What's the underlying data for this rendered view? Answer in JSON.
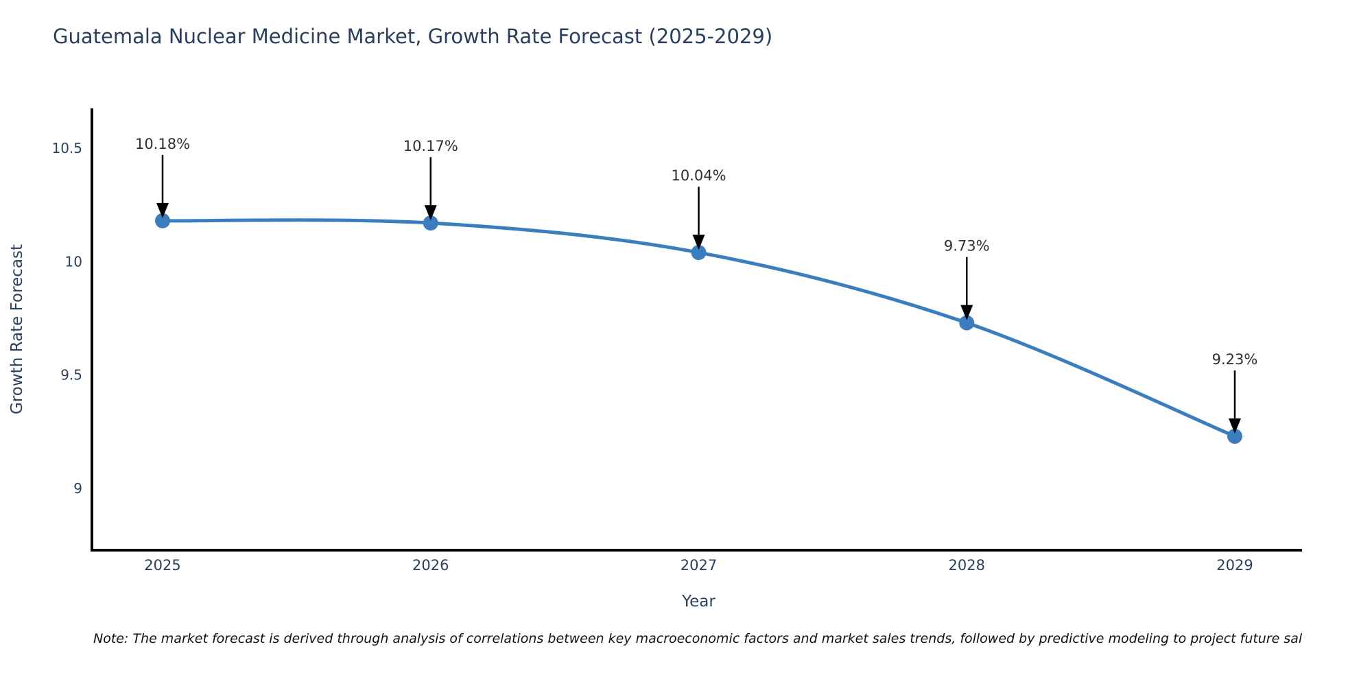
{
  "chart_data": {
    "type": "line",
    "title": "Guatemala Nuclear Medicine Market, Growth Rate Forecast (2025-2029)",
    "xlabel": "Year",
    "ylabel": "Growth Rate Forecast",
    "line_shape": "spline",
    "grid": false,
    "legend": "none",
    "categories": [
      "2025",
      "2026",
      "2027",
      "2028",
      "2029"
    ],
    "values": [
      10.18,
      10.17,
      10.04,
      9.73,
      9.23
    ],
    "point_labels": [
      "10.18%",
      "10.17%",
      "10.04%",
      "9.73%",
      "9.23%"
    ],
    "y_ticks": [
      10.5,
      10,
      9.5,
      9
    ],
    "y_tick_labels": [
      "10.5",
      "10",
      "9.5",
      "9"
    ],
    "ylim": [
      8.73,
      10.67
    ],
    "colors": {
      "line": "#3a7ebf",
      "marker": "#3a7ebf",
      "axis": "#000000",
      "title_text": "#2a3f5f",
      "tick_text": "#2a3f5f",
      "axis_title_text": "#2a3f5f",
      "annotation_text": "#303030",
      "arrow": "#000000",
      "background": "#ffffff"
    }
  },
  "note": "Note: The market forecast is derived through analysis of correlations between key macroeconomic factors and market sales trends, followed by predictive modeling to project future sal"
}
